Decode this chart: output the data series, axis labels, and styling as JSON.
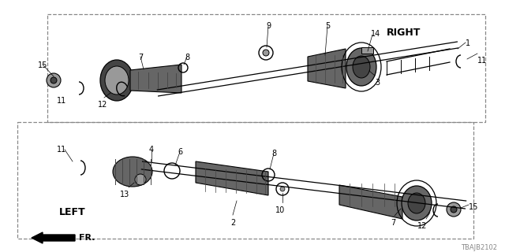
{
  "bg_color": "#ffffff",
  "lc": "#000000",
  "gray1": "#444444",
  "gray2": "#666666",
  "gray3": "#999999",
  "gray4": "#bbbbbb",
  "dashed_color": "#888888",
  "title_right": "RIGHT",
  "title_left": "LEFT",
  "diagram_code": "TBAJB2102",
  "fr_label": "FR.",
  "fs_num": 7,
  "fs_title": 9,
  "fs_code": 6,
  "figw": 6.4,
  "figh": 3.2,
  "dpi": 100,
  "xmin": 0,
  "xmax": 640,
  "ymin": 0,
  "ymax": 320
}
